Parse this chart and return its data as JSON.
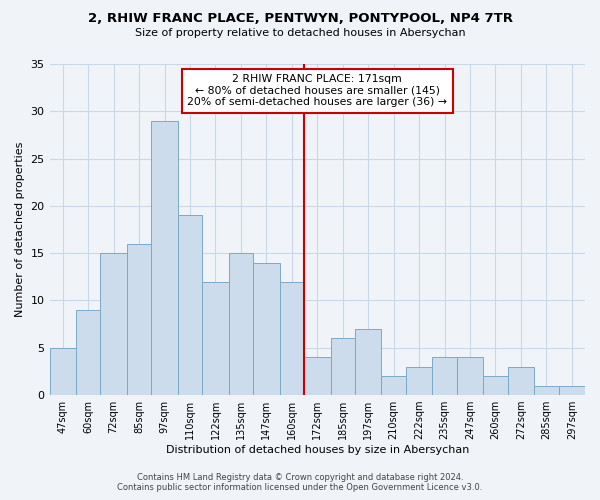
{
  "title": "2, RHIW FRANC PLACE, PENTWYN, PONTYPOOL, NP4 7TR",
  "subtitle": "Size of property relative to detached houses in Abersychan",
  "xlabel": "Distribution of detached houses by size in Abersychan",
  "ylabel": "Number of detached properties",
  "bar_color": "#ccdcec",
  "bar_edge_color": "#7aaac8",
  "grid_color": "#c8d8e8",
  "vline_color": "#cc0000",
  "vline_x": 172,
  "annotation_title": "2 RHIW FRANC PLACE: 171sqm",
  "annotation_line1": "← 80% of detached houses are smaller (145)",
  "annotation_line2": "20% of semi-detached houses are larger (36) →",
  "annotation_box_color": "#ffffff",
  "annotation_box_edge": "#cc0000",
  "bins": [
    47,
    60,
    72,
    85,
    97,
    110,
    122,
    135,
    147,
    160,
    172,
    185,
    197,
    210,
    222,
    235,
    247,
    260,
    272,
    285,
    297,
    310
  ],
  "bin_labels": [
    "47sqm",
    "60sqm",
    "72sqm",
    "85sqm",
    "97sqm",
    "110sqm",
    "122sqm",
    "135sqm",
    "147sqm",
    "160sqm",
    "172sqm",
    "185sqm",
    "197sqm",
    "210sqm",
    "222sqm",
    "235sqm",
    "247sqm",
    "260sqm",
    "272sqm",
    "285sqm",
    "297sqm"
  ],
  "counts": [
    5,
    9,
    15,
    16,
    29,
    19,
    12,
    15,
    14,
    12,
    4,
    6,
    7,
    2,
    3,
    4,
    4,
    2,
    3,
    1,
    1
  ],
  "ylim": [
    0,
    35
  ],
  "yticks": [
    0,
    5,
    10,
    15,
    20,
    25,
    30,
    35
  ],
  "footer_line1": "Contains HM Land Registry data © Crown copyright and database right 2024.",
  "footer_line2": "Contains public sector information licensed under the Open Government Licence v3.0.",
  "background_color": "#f0f4f8"
}
